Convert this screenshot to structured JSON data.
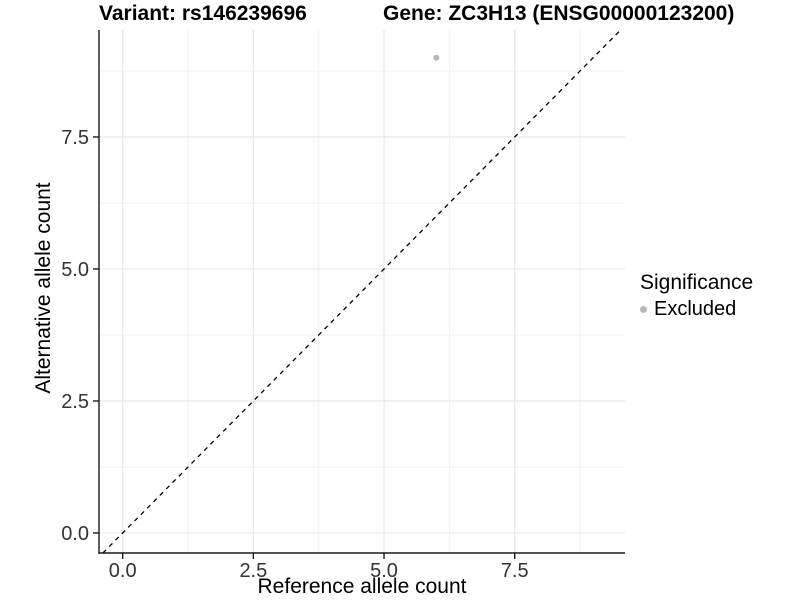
{
  "header": {
    "variant_title": "Variant: rs146239696",
    "gene_title": "Gene: ZC3H13 (ENSG00000123200)"
  },
  "legend": {
    "title": "Significance",
    "entries": [
      {
        "label": "Excluded",
        "color": "#b9b9b9"
      }
    ]
  },
  "colors": {
    "axis_line": "#1a1a1a",
    "tick_mark": "#1a1a1a",
    "tick_label": "#333333",
    "grid_major": "#e5e5e5",
    "grid_minor": "#f0f0f0",
    "identity_line": "#000000",
    "point": "#b9b9b9",
    "background": "#ffffff"
  },
  "chart_data": {
    "type": "scatter",
    "title": "Variant: rs146239696   Gene: ZC3H13 (ENSG00000123200)",
    "xlabel": "Reference allele count",
    "ylabel": "Alternative allele count",
    "xlim": [
      -0.453,
      9.61
    ],
    "ylim": [
      -0.379,
      9.526
    ],
    "xticks": [
      0.0,
      2.5,
      5.0,
      7.5
    ],
    "yticks": [
      0.0,
      2.5,
      5.0,
      7.5
    ],
    "xtick_labels": [
      "0.0",
      "2.5",
      "5.0",
      "7.5"
    ],
    "ytick_labels": [
      "0.0",
      "2.5",
      "5.0",
      "7.5"
    ],
    "minor_xticks": [
      1.25,
      3.75,
      6.25,
      8.75
    ],
    "minor_yticks": [
      1.25,
      3.75,
      6.25,
      8.75
    ],
    "grid": true,
    "legend_position": "right",
    "reference_line": {
      "type": "identity",
      "slope": 1,
      "intercept": 0,
      "style": "dashed"
    },
    "series": [
      {
        "name": "Excluded",
        "color": "#b9b9b9",
        "points": [
          {
            "x": 6,
            "y": 9
          }
        ]
      }
    ]
  }
}
